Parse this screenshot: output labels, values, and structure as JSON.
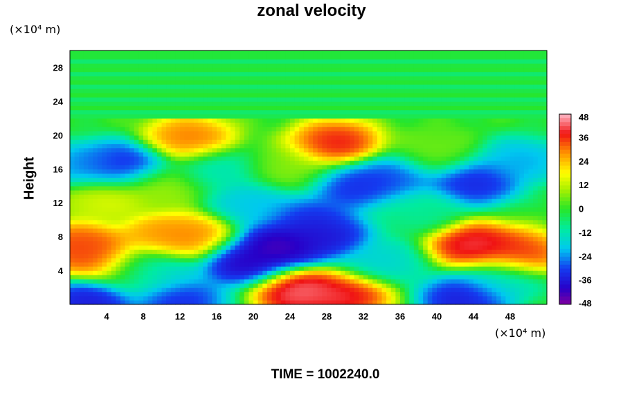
{
  "chart_data": {
    "type": "heatmap",
    "title": "zonal velocity",
    "ylabel": "Height",
    "x_unit": "(×10⁴ m)",
    "y_unit": "(×10⁴ m)",
    "xlim": [
      0,
      52
    ],
    "ylim": [
      0,
      30
    ],
    "x_ticks": [
      "4",
      "8",
      "12",
      "16",
      "20",
      "24",
      "28",
      "32",
      "36",
      "40",
      "44",
      "48"
    ],
    "y_ticks": [
      "4",
      "8",
      "12",
      "16",
      "20",
      "24",
      "28"
    ],
    "colorbar": {
      "range": [
        -48,
        48
      ],
      "ticks": [
        "48",
        "36",
        "24",
        "12",
        "0",
        "-12",
        "-24",
        "-36",
        "-48"
      ]
    },
    "features": [
      {
        "x": 25,
        "y": 1.5,
        "value": 48
      },
      {
        "x": 30,
        "y": 1.2,
        "value": 44
      },
      {
        "x": 44,
        "y": 7,
        "value": 46
      },
      {
        "x": 49,
        "y": 6,
        "value": 40
      },
      {
        "x": 1,
        "y": 7,
        "value": 38
      },
      {
        "x": 3,
        "y": 5.5,
        "value": 36
      },
      {
        "x": 10,
        "y": 8,
        "value": 30
      },
      {
        "x": 13,
        "y": 8,
        "value": 32
      },
      {
        "x": 29,
        "y": 19,
        "value": 42
      },
      {
        "x": 13,
        "y": 19.5,
        "value": 34
      },
      {
        "x": 8,
        "y": 4,
        "value": 12
      },
      {
        "x": 23,
        "y": 7,
        "value": -48
      },
      {
        "x": 19,
        "y": 5,
        "value": -44
      },
      {
        "x": 28,
        "y": 8,
        "value": -40
      },
      {
        "x": 26,
        "y": 10,
        "value": -36
      },
      {
        "x": 31,
        "y": 14,
        "value": -36
      },
      {
        "x": 35,
        "y": 15,
        "value": -32
      },
      {
        "x": 6,
        "y": 16.5,
        "value": -38
      },
      {
        "x": 2,
        "y": 16.5,
        "value": -26
      },
      {
        "x": 44,
        "y": 14.5,
        "value": -38
      },
      {
        "x": 49,
        "y": 17,
        "value": -24
      },
      {
        "x": 43,
        "y": 0.8,
        "value": -40
      },
      {
        "x": 2,
        "y": 0.4,
        "value": -40
      },
      {
        "x": 9,
        "y": 4,
        "value": -34
      },
      {
        "x": 12,
        "y": 0.4,
        "value": -36
      },
      {
        "x": 16,
        "y": 16,
        "value": -14
      },
      {
        "x": 20,
        "y": 12,
        "value": -22
      },
      {
        "x": 38,
        "y": 11,
        "value": -10
      },
      {
        "x": 34,
        "y": 5,
        "value": -18
      },
      {
        "x": 47,
        "y": 3,
        "value": -16
      },
      {
        "x": 4,
        "y": 12.5,
        "value": 16
      },
      {
        "x": 24,
        "y": 16,
        "value": 8
      },
      {
        "x": 40,
        "y": 18,
        "value": 6
      },
      {
        "x": 10,
        "y": 14,
        "value": 10
      }
    ]
  },
  "footer": {
    "time_label": "TIME = 1002240.0"
  }
}
